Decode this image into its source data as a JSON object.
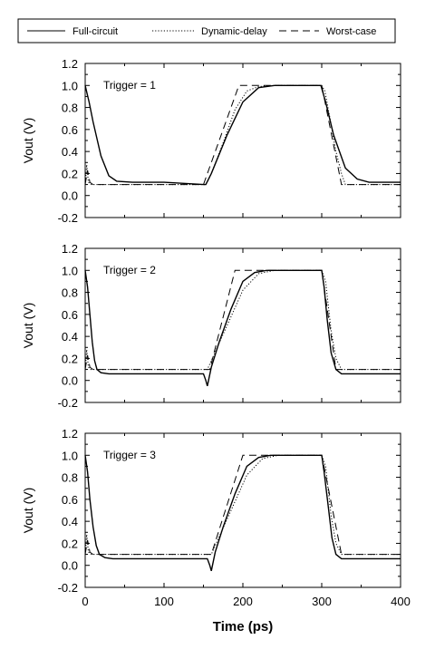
{
  "legend": {
    "items": [
      {
        "label": "Full-circuit",
        "dash": "solid"
      },
      {
        "label": "Dynamic-delay",
        "dash": "dotted"
      },
      {
        "label": "Worst-case",
        "dash": "dashed"
      }
    ]
  },
  "chart_data": [
    {
      "type": "line",
      "annotation": "Trigger = 1",
      "ylabel": "Vout (V)",
      "xlabel": "",
      "xlim": [
        0,
        400
      ],
      "ylim": [
        -0.2,
        1.2
      ],
      "yticks": [
        "1.2",
        "1.0",
        "0.8",
        "0.6",
        "0.4",
        "0.2",
        "0.0",
        "-0.2"
      ],
      "xticks": [],
      "series": [
        {
          "name": "Full-circuit",
          "dash": "solid",
          "x": [
            0,
            5,
            10,
            20,
            30,
            40,
            60,
            100,
            150,
            153,
            160,
            180,
            200,
            220,
            240,
            299,
            305,
            315,
            330,
            345,
            360,
            400
          ],
          "y": [
            1.0,
            0.85,
            0.67,
            0.36,
            0.18,
            0.13,
            0.12,
            0.12,
            0.1,
            0.1,
            0.2,
            0.55,
            0.85,
            0.98,
            1.0,
            1.0,
            0.85,
            0.55,
            0.25,
            0.15,
            0.12,
            0.12
          ]
        },
        {
          "name": "Dynamic-delay",
          "dash": "dotted",
          "x": [
            0,
            2,
            4,
            8,
            12,
            100,
            152,
            155,
            160,
            175,
            190,
            205,
            220,
            240,
            300,
            304,
            310,
            318,
            325,
            330,
            400
          ],
          "y": [
            0.1,
            0.28,
            0.12,
            0.1,
            0.1,
            0.1,
            0.1,
            0.12,
            0.2,
            0.48,
            0.78,
            0.95,
            0.99,
            1.0,
            1.0,
            0.95,
            0.72,
            0.4,
            0.2,
            0.1,
            0.1
          ]
        },
        {
          "name": "Worst-case",
          "dash": "dashed",
          "x": [
            0,
            3,
            6,
            10,
            150,
            195,
            300,
            325,
            400
          ],
          "y": [
            0.1,
            0.23,
            0.12,
            0.1,
            0.1,
            1.0,
            1.0,
            0.1,
            0.1
          ]
        }
      ]
    },
    {
      "type": "line",
      "annotation": "Trigger = 2",
      "ylabel": "Vout (V)",
      "xlabel": "",
      "xlim": [
        0,
        400
      ],
      "ylim": [
        -0.2,
        1.2
      ],
      "yticks": [
        "1.2",
        "1.0",
        "0.8",
        "0.6",
        "0.4",
        "0.2",
        "0.0",
        "-0.2"
      ],
      "xticks": [],
      "series": [
        {
          "name": "Full-circuit",
          "dash": "solid",
          "x": [
            0,
            3,
            6,
            9,
            12,
            15,
            20,
            30,
            150,
            153,
            155,
            160,
            170,
            185,
            200,
            215,
            230,
            300,
            303,
            307,
            312,
            318,
            325,
            400
          ],
          "y": [
            1.0,
            0.85,
            0.6,
            0.35,
            0.18,
            0.1,
            0.07,
            0.06,
            0.06,
            0.0,
            -0.05,
            0.12,
            0.35,
            0.65,
            0.9,
            0.98,
            1.0,
            1.0,
            0.85,
            0.55,
            0.25,
            0.1,
            0.06,
            0.06
          ]
        },
        {
          "name": "Dynamic-delay",
          "dash": "dotted",
          "x": [
            0,
            2,
            4,
            7,
            12,
            150,
            155,
            160,
            180,
            200,
            220,
            240,
            300,
            305,
            312,
            318,
            325,
            400
          ],
          "y": [
            0.1,
            0.28,
            0.12,
            0.1,
            0.1,
            0.1,
            0.1,
            0.18,
            0.5,
            0.82,
            0.97,
            1.0,
            1.0,
            0.9,
            0.45,
            0.2,
            0.1,
            0.1
          ]
        },
        {
          "name": "Worst-case",
          "dash": "dashed",
          "x": [
            0,
            3,
            6,
            10,
            158,
            190,
            300,
            318,
            400
          ],
          "y": [
            0.1,
            0.23,
            0.12,
            0.1,
            0.1,
            1.0,
            1.0,
            0.1,
            0.1
          ]
        }
      ]
    },
    {
      "type": "line",
      "annotation": "Trigger = 3",
      "ylabel": "Vout (V)",
      "xlabel": "Time  (ps)",
      "xlim": [
        0,
        400
      ],
      "ylim": [
        -0.2,
        1.2
      ],
      "yticks": [
        "1.2",
        "1.0",
        "0.8",
        "0.6",
        "0.4",
        "0.2",
        "0.0",
        "-0.2"
      ],
      "xticks": [
        "0",
        "100",
        "200",
        "300",
        "400"
      ],
      "series": [
        {
          "name": "Full-circuit",
          "dash": "solid",
          "x": [
            0,
            3,
            6,
            10,
            14,
            18,
            25,
            35,
            155,
            158,
            160,
            165,
            175,
            190,
            205,
            220,
            235,
            300,
            303,
            308,
            313,
            318,
            325,
            400
          ],
          "y": [
            1.0,
            0.85,
            0.6,
            0.35,
            0.18,
            0.1,
            0.07,
            0.06,
            0.06,
            0.0,
            -0.05,
            0.12,
            0.35,
            0.65,
            0.9,
            0.98,
            1.0,
            1.0,
            0.85,
            0.55,
            0.25,
            0.1,
            0.06,
            0.06
          ]
        },
        {
          "name": "Dynamic-delay",
          "dash": "dotted",
          "x": [
            0,
            2,
            4,
            8,
            15,
            155,
            160,
            165,
            185,
            205,
            225,
            245,
            300,
            305,
            312,
            318,
            325,
            400
          ],
          "y": [
            0.1,
            0.28,
            0.12,
            0.1,
            0.1,
            0.1,
            0.1,
            0.18,
            0.5,
            0.82,
            0.97,
            1.0,
            1.0,
            0.9,
            0.45,
            0.2,
            0.1,
            0.1
          ]
        },
        {
          "name": "Worst-case",
          "dash": "dashed",
          "x": [
            0,
            3,
            6,
            10,
            160,
            200,
            300,
            325,
            400
          ],
          "y": [
            0.1,
            0.23,
            0.12,
            0.1,
            0.1,
            1.0,
            1.0,
            0.1,
            0.1
          ]
        }
      ]
    }
  ]
}
